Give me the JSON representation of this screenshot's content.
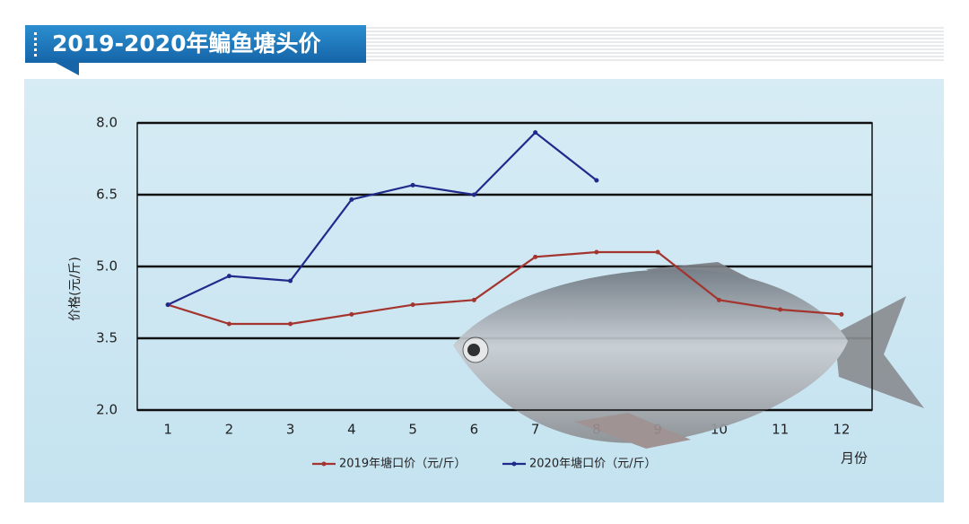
{
  "chart_data": {
    "type": "line",
    "title": "2019-2020年鳊鱼塘头价",
    "y_label": "价格(元/斤)",
    "x_label": "月份",
    "categories": [
      "1",
      "2",
      "3",
      "4",
      "5",
      "6",
      "7",
      "8",
      "9",
      "10",
      "11",
      "12"
    ],
    "series": [
      {
        "name": "2019年塘口价（元/斤）",
        "color": "#a3342e",
        "values": [
          4.2,
          3.8,
          3.8,
          4.0,
          4.2,
          4.3,
          5.2,
          5.3,
          5.3,
          4.3,
          4.1,
          4.0
        ]
      },
      {
        "name": "2020年塘口价（元/斤）",
        "color": "#1f2a8c",
        "values": [
          4.2,
          4.8,
          4.7,
          6.4,
          6.7,
          6.5,
          7.8,
          6.8,
          null,
          null,
          null,
          null
        ]
      }
    ],
    "ylim": [
      2,
      8
    ],
    "yticks": [
      {
        "value": 2,
        "label": "2.0"
      },
      3.5,
      {
        "value": 5,
        "label": "5.0"
      },
      6.5,
      {
        "value": 8,
        "label": "8.0"
      }
    ],
    "grid": true
  }
}
